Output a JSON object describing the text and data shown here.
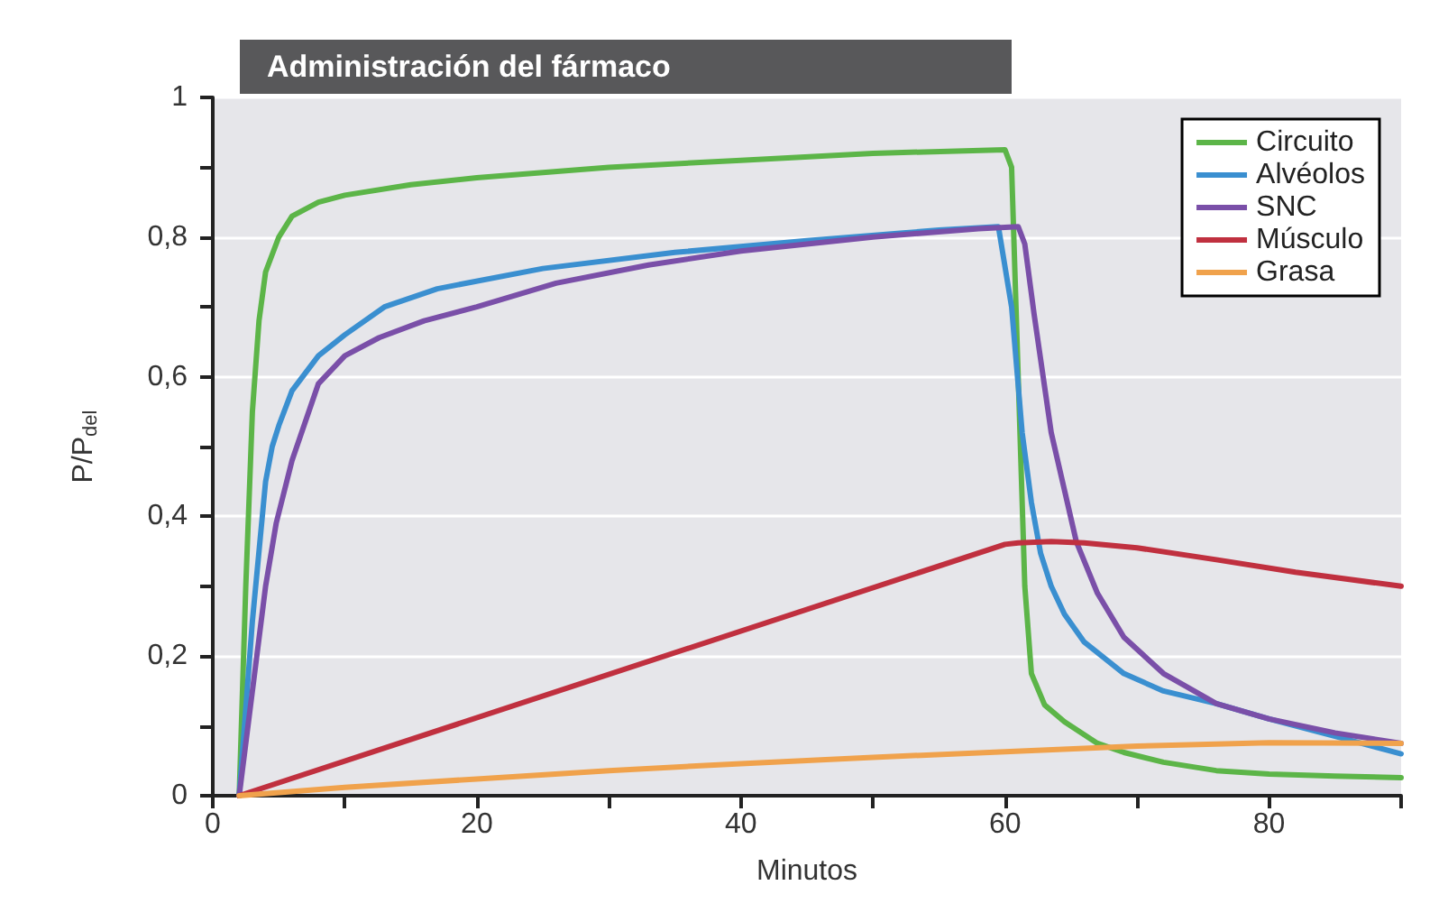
{
  "chart_data": {
    "type": "line",
    "xlabel": "Minutos",
    "ylabel": "P/P$_{del}$",
    "xlim": [
      0,
      90
    ],
    "xticks": [
      0,
      {
        "value": 10,
        "label": null
      },
      20,
      {
        "value": 30,
        "label": null
      },
      40,
      {
        "value": 50,
        "label": null
      },
      60,
      {
        "value": 70,
        "label": null
      },
      80,
      {
        "value": 90,
        "label": null
      }
    ],
    "ylim": [
      0,
      1
    ],
    "yticks": [
      0,
      {
        "value": 0.1,
        "label": null
      },
      {
        "value": 0.2,
        "label": "0,2"
      },
      {
        "value": 0.3,
        "label": null
      },
      {
        "value": 0.4,
        "label": "0,4"
      },
      {
        "value": 0.5,
        "label": null
      },
      {
        "value": 0.6,
        "label": "0,6"
      },
      {
        "value": 0.7,
        "label": null
      },
      {
        "value": 0.8,
        "label": "0,8"
      },
      {
        "value": 0.9,
        "label": null
      },
      1
    ],
    "grid": "y",
    "legend": "top right",
    "marker": "none",
    "line_style": "solid",
    "annotations": [
      "Administración del fármaco"
    ],
    "series": [
      {
        "name": "Circuito",
        "color": "#5cb548",
        "x": [
          2,
          2.5,
          3,
          3.5,
          4,
          5,
          6,
          8,
          10,
          15,
          20,
          30,
          40,
          50,
          60,
          60.5,
          61,
          61.5,
          62,
          63,
          64.5,
          67,
          69,
          72,
          76,
          80,
          85,
          90
        ],
        "values": [
          0,
          0.3,
          0.55,
          0.68,
          0.75,
          0.8,
          0.83,
          0.85,
          0.86,
          0.875,
          0.885,
          0.9,
          0.91,
          0.92,
          0.925,
          0.9,
          0.6,
          0.3,
          0.175,
          0.13,
          0.106,
          0.075,
          0.062,
          0.048,
          0.036,
          0.031,
          0.028,
          0.026
        ]
      },
      {
        "name": "Alvéolos",
        "color": "#3a8fd0",
        "x": [
          2,
          3,
          4,
          4.5,
          5,
          6,
          8,
          10,
          13,
          17,
          25,
          35,
          45,
          55,
          59.5,
          60.5,
          61.3,
          62,
          62.7,
          63.5,
          64.5,
          66,
          69,
          72,
          76,
          80,
          85,
          90
        ],
        "values": [
          0,
          0.25,
          0.45,
          0.5,
          0.53,
          0.58,
          0.63,
          0.66,
          0.7,
          0.726,
          0.755,
          0.778,
          0.795,
          0.81,
          0.815,
          0.7,
          0.52,
          0.42,
          0.347,
          0.3,
          0.26,
          0.22,
          0.175,
          0.15,
          0.132,
          0.11,
          0.085,
          0.06
        ]
      },
      {
        "name": "SNC",
        "color": "#7a4fa8",
        "x": [
          2,
          3,
          4,
          4.8,
          6,
          8,
          10,
          12.6,
          16,
          20,
          26,
          33,
          40,
          50,
          58,
          61,
          61.5,
          62.2,
          63.5,
          65.4,
          67,
          69,
          72,
          76,
          80,
          85,
          90
        ],
        "values": [
          0,
          0.15,
          0.3,
          0.39,
          0.48,
          0.59,
          0.63,
          0.656,
          0.68,
          0.7,
          0.734,
          0.76,
          0.78,
          0.8,
          0.812,
          0.815,
          0.79,
          0.69,
          0.52,
          0.364,
          0.29,
          0.227,
          0.175,
          0.132,
          0.11,
          0.09,
          0.075
        ]
      },
      {
        "name": "Músculo",
        "color": "#c0303f",
        "x": [
          2,
          60,
          61,
          63.5,
          66,
          70,
          76,
          82,
          90
        ],
        "values": [
          0,
          0.36,
          0.362,
          0.364,
          0.362,
          0.355,
          0.338,
          0.32,
          0.3
        ]
      },
      {
        "name": "Grasa",
        "color": "#f0a24c",
        "x": [
          2,
          10,
          20,
          30,
          40,
          50,
          60,
          70,
          80,
          90
        ],
        "values": [
          0,
          0.012,
          0.024,
          0.036,
          0.046,
          0.055,
          0.063,
          0.071,
          0.076,
          0.075
        ]
      }
    ]
  }
}
